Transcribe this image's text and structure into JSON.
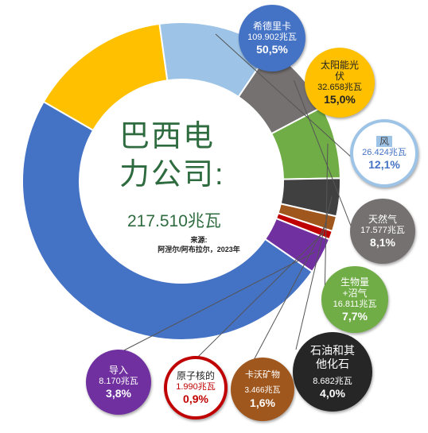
{
  "center": {
    "title_line1": "巴西电",
    "title_line2": "力公司:",
    "total": "217.510兆瓦",
    "source_label": "来源:",
    "source_text": "阿涅尔/阿布拉尔，2023年"
  },
  "colors": {
    "hydro": "#4472c4",
    "solar": "#ffc000",
    "wind": "#9dc3e6",
    "gas": "#767171",
    "biomass": "#70ad47",
    "oil": "#404040",
    "coal": "#a0571e",
    "nuclear": "#c00000",
    "import": "#7030a0",
    "title_green": "#2e6b3f"
  },
  "chart_data": {
    "type": "pie",
    "title": "巴西电力公司:",
    "total": "217.510兆瓦",
    "source": "阿涅尔/阿布拉尔，2023年",
    "slices": [
      {
        "name": "希德里卡",
        "value": "109.902兆瓦",
        "percent": "50,5%",
        "share": 50.5,
        "color": "#4472c4"
      },
      {
        "name": "太阳能光伏",
        "value": "32.658兆瓦",
        "percent": "15,0%",
        "share": 15.0,
        "color": "#ffc000"
      },
      {
        "name": "风",
        "value": "26.424兆瓦",
        "percent": "12,1%",
        "share": 12.1,
        "color": "#9dc3e6"
      },
      {
        "name": "天然气",
        "value": "17.577兆瓦",
        "percent": "8,1%",
        "share": 8.1,
        "color": "#767171"
      },
      {
        "name": "生物量+沼气",
        "value": "16.811兆瓦",
        "percent": "7,7%",
        "share": 7.7,
        "color": "#70ad47"
      },
      {
        "name": "石油和其他化石",
        "value": "8.682兆瓦",
        "percent": "4,0%",
        "share": 4.0,
        "color": "#404040"
      },
      {
        "name": "卡沃矿物",
        "value": "3.466兆瓦",
        "percent": "1,6%",
        "share": 1.6,
        "color": "#a0571e"
      },
      {
        "name": "原子核的",
        "value": "1.990兆瓦",
        "percent": "0,9%",
        "share": 0.9,
        "color": "#c00000"
      },
      {
        "name": "导入",
        "value": "8.170兆瓦",
        "percent": "3,8%",
        "share": 3.8,
        "color": "#7030a0"
      }
    ]
  },
  "labels": {
    "hydro": {
      "name": "希德里卡",
      "value": "109.902兆瓦",
      "percent": "50,5%"
    },
    "solar": {
      "name1": "太阳能光",
      "name2": "伏",
      "value": "32.658兆瓦",
      "percent": "15,0%"
    },
    "wind": {
      "name": "风",
      "value": "26.424兆瓦",
      "percent": "12,1%"
    },
    "gas": {
      "name": "天然气",
      "value": "17.577兆瓦",
      "percent": "8,1%"
    },
    "biomass": {
      "name1": "生物量",
      "name2": "+沼气",
      "value": "16.811兆瓦",
      "percent": "7,7%"
    },
    "oil": {
      "name1": "石油和其",
      "name2": "他化石",
      "value": "8.682兆瓦",
      "percent": "4,0%"
    },
    "coal": {
      "name": "卡沃矿物",
      "value": "3.466兆瓦",
      "percent": "1,6%"
    },
    "nuclear": {
      "name": "原子核的",
      "value": "1.990兆瓦",
      "percent": "0,9%"
    },
    "import": {
      "name": "导入",
      "value": "8.170兆瓦",
      "percent": "3,8%"
    }
  }
}
